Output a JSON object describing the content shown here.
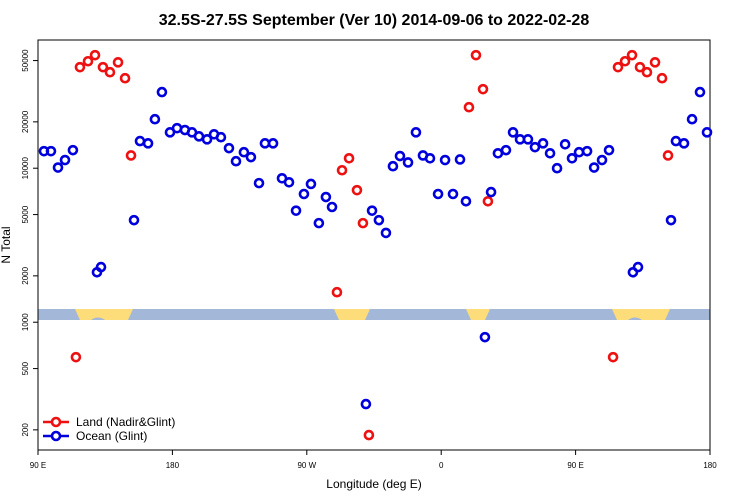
{
  "chart_data": {
    "type": "scatter",
    "title": "32.5S-27.5S September (Ver 10)   2014-09-06 to 2022-02-28",
    "x_label": "Longitude (deg E)",
    "y_label": "N Total",
    "log_y": true,
    "legend": "bottom left",
    "xlim": [
      90,
      540
    ],
    "ylim": [
      148,
      68000
    ],
    "xticks": [
      {
        "value": 90,
        "label": "90 E"
      },
      {
        "value": 180,
        "label": "180"
      },
      {
        "value": 270,
        "label": "90 W"
      },
      {
        "value": 360,
        "label": "0"
      },
      {
        "value": 450,
        "label": "90 E"
      },
      {
        "value": 540,
        "label": "180"
      }
    ],
    "yticks": [
      200,
      500,
      1000,
      2000,
      5000,
      10000,
      20000,
      50000
    ],
    "series": [
      {
        "name": "Land (Nadir&Glint)",
        "color": "#ee1111",
        "x": [
          115.4,
          118.1,
          123.5,
          128.2,
          133.5,
          138.2,
          143.6,
          148.3,
          152.3,
          290.2,
          293.6,
          298.3,
          303.6,
          307.6,
          311.6,
          378.6,
          383.3,
          388.0,
          391.3,
          475.1,
          478.4,
          483.1,
          487.8,
          493.1,
          497.8,
          503.2,
          507.9,
          511.9
        ],
        "values": [
          593,
          45300,
          49500,
          54200,
          45300,
          42000,
          48700,
          38400,
          12100,
          1566,
          9700,
          11600,
          7200,
          4400,
          185,
          24900,
          54200,
          32600,
          6100,
          593,
          45300,
          49500,
          54200,
          45300,
          42000,
          48700,
          38400,
          12100
        ]
      },
      {
        "name": "Ocean (Glint)",
        "color": "#0000dd",
        "x": [
          94.0,
          98.7,
          103.4,
          108.1,
          113.4,
          129.5,
          132.2,
          154.3,
          158.3,
          163.7,
          168.3,
          173.0,
          178.4,
          183.1,
          188.4,
          193.1,
          197.8,
          203.2,
          207.9,
          212.5,
          217.9,
          222.6,
          227.9,
          232.6,
          238.0,
          242.0,
          247.4,
          253.4,
          258.1,
          262.8,
          268.1,
          272.8,
          278.1,
          282.8,
          286.9,
          309.6,
          313.7,
          318.3,
          323.0,
          327.7,
          332.4,
          337.8,
          343.1,
          347.8,
          352.5,
          357.9,
          362.6,
          367.9,
          372.6,
          376.6,
          389.3,
          393.4,
          398.0,
          403.4,
          408.1,
          412.8,
          418.1,
          422.8,
          428.2,
          432.9,
          437.6,
          443.0,
          447.6,
          452.3,
          457.7,
          462.4,
          467.7,
          472.4,
          488.4,
          491.8,
          513.9,
          517.2,
          522.6,
          528.0,
          533.3,
          538.0
        ],
        "values": [
          12900,
          12900,
          10100,
          11300,
          13100,
          2110,
          2280,
          4600,
          15000,
          14500,
          20800,
          31200,
          17100,
          18200,
          17700,
          17100,
          16100,
          15400,
          16600,
          15900,
          13500,
          11100,
          12700,
          11800,
          8000,
          14500,
          14500,
          8600,
          8100,
          5300,
          6800,
          7900,
          4400,
          6500,
          5600,
          294,
          5300,
          4600,
          3800,
          10300,
          12000,
          10900,
          17100,
          12100,
          11600,
          6800,
          11300,
          6800,
          11400,
          6100,
          800,
          7000,
          12500,
          13100,
          17100,
          15400,
          15400,
          13700,
          14500,
          12500,
          10000,
          14300,
          11600,
          12700,
          12900,
          10100,
          11300,
          13100,
          2110,
          2280,
          4600,
          15000,
          14500,
          20800,
          31200,
          17100
        ]
      }
    ]
  }
}
